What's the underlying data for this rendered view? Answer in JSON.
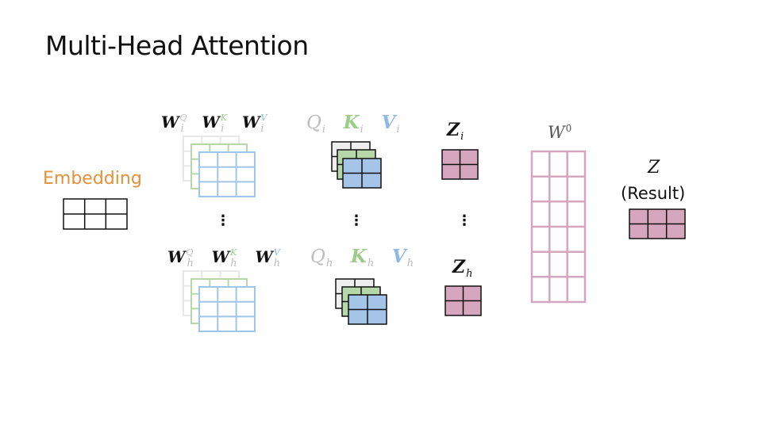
{
  "title": "Multi-Head Attention",
  "embedding_label": "Embedding",
  "result_label": "(Result)",
  "weights_row_i": {
    "wq": "W",
    "wq_sub": "i",
    "wq_sup": "Q",
    "wk": "W",
    "wk_sub": "i",
    "wk_sup": "K",
    "wv": "W",
    "wv_sub": "i",
    "wv_sup": "V"
  },
  "weights_row_h": {
    "wq": "W",
    "wq_sub": "h",
    "wq_sup": "Q",
    "wk": "W",
    "wk_sub": "h",
    "wk_sup": "K",
    "wv": "W",
    "wv_sub": "h",
    "wv_sup": "V"
  },
  "qkv_row_i": {
    "q": "Q",
    "q_sub": "i",
    "k": "K",
    "k_sub": "i",
    "v": "V",
    "v_sub": "i"
  },
  "qkv_row_h": {
    "q": "Q",
    "q_sub": "h",
    "k": "K",
    "k_sub": "h",
    "v": "V",
    "v_sub": "h"
  },
  "z_i": {
    "z": "Z",
    "sub": "i"
  },
  "z_h": {
    "z": "Z",
    "sub": "h"
  },
  "w0": {
    "w": "W",
    "sup": "0"
  },
  "z_result": "Z",
  "ellipsis": "⋮",
  "colors": {
    "embedding": "#e69138",
    "gray": "#bdbdbd",
    "green": "#9ccc8a",
    "blue": "#8fb8e6",
    "blue_fill": "#a4c4e8",
    "green_fill": "#b6d7a8",
    "gray_fill": "#eeeeee",
    "pink": "#d5a6bd",
    "pink_line": "#c48aa7",
    "dark": "#111111"
  }
}
